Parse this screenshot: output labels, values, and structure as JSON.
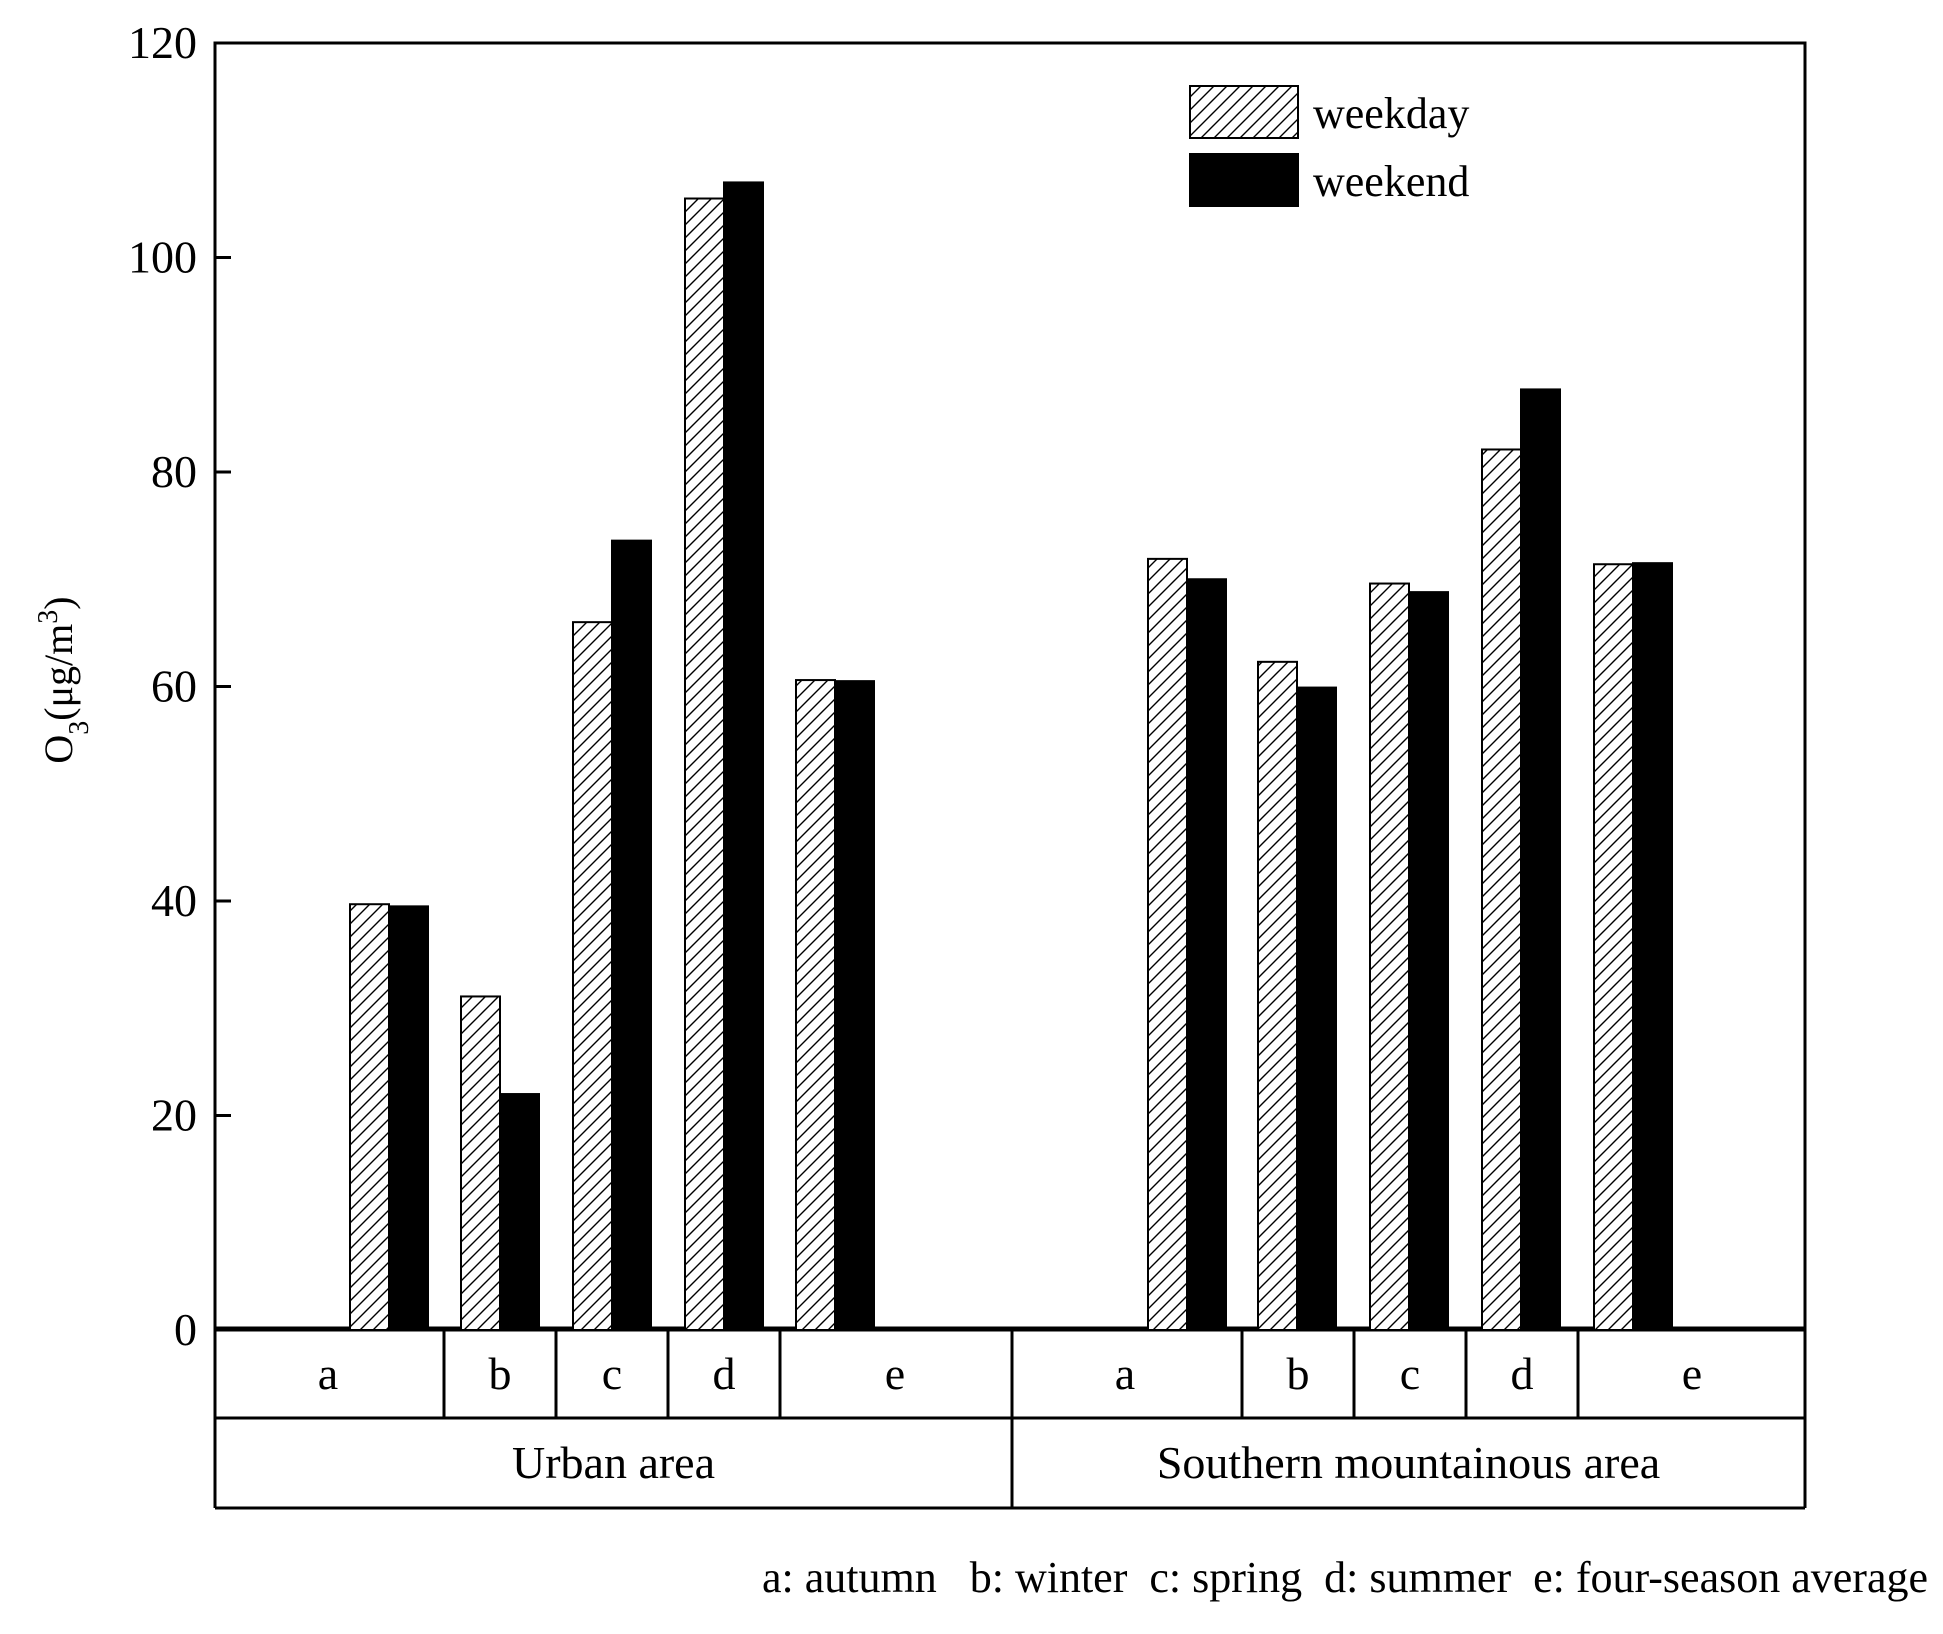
{
  "chart_data": {
    "type": "bar",
    "ylabel": "O",
    "ylabel_sub": "3",
    "ylabel_unit_prefix": "(μg/m",
    "ylabel_sup": "3",
    "ylabel_unit_suffix": ")",
    "ylim": [
      0,
      120
    ],
    "yticks": [
      "0",
      "20",
      "40",
      "60",
      "80",
      "100",
      "120"
    ],
    "grid": false,
    "legend_position": "top-right",
    "groups": [
      {
        "name": "Urban area",
        "categories": [
          "a",
          "b",
          "c",
          "d",
          "e"
        ]
      },
      {
        "name": "Southern mountainous area",
        "categories": [
          "a",
          "b",
          "c",
          "d",
          "e"
        ]
      }
    ],
    "series": [
      {
        "name": "weekday",
        "style": "hatched",
        "values": [
          39.7,
          31.1,
          66.0,
          105.5,
          60.6,
          71.9,
          62.3,
          69.6,
          82.1,
          71.4
        ]
      },
      {
        "name": "weekend",
        "style": "solid",
        "values": [
          39.5,
          22.0,
          73.6,
          107.0,
          60.5,
          70.0,
          59.9,
          68.8,
          87.7,
          71.5
        ]
      }
    ],
    "footnote": "a: autumn   b: winter  c: spring  d: summer  e: four-season average",
    "colors": {
      "weekend": "#000000",
      "weekday_fill": "#ffffff",
      "hatch": "#000000"
    }
  }
}
